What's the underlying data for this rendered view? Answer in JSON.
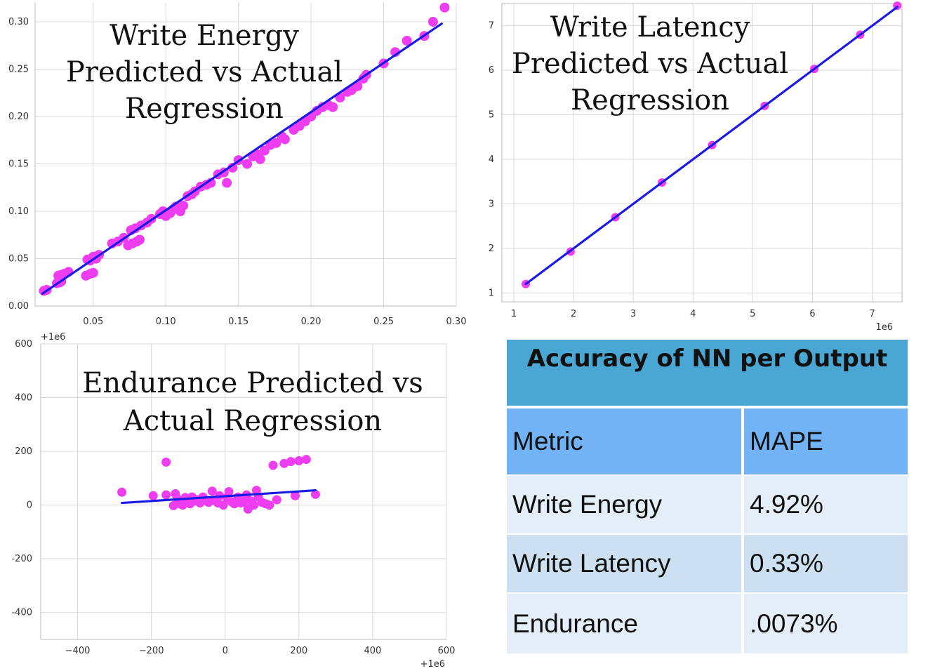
{
  "chart_data": [
    {
      "type": "scatter",
      "title": "Write Energy Predicted vs Actual Regression",
      "title_lines": [
        "Write Energy",
        "Predicted vs Actual",
        "Regression"
      ],
      "xlim": [
        0.01,
        0.3
      ],
      "ylim": [
        0.0,
        0.32
      ],
      "x_ticks": [
        "0.05",
        "0.10",
        "0.15",
        "0.20",
        "0.25",
        "0.30"
      ],
      "y_ticks": [
        "0.00",
        "0.05",
        "0.10",
        "0.15",
        "0.20",
        "0.25",
        "0.30"
      ],
      "grid": true,
      "point_color": "#ee3cf0",
      "line_color": "#1a1ae6",
      "regression_line": [
        [
          0.015,
          0.013
        ],
        [
          0.29,
          0.298
        ]
      ],
      "series": [
        {
          "points": [
            [
              0.016,
              0.016
            ],
            [
              0.018,
              0.017
            ],
            [
              0.025,
              0.024
            ],
            [
              0.027,
              0.025
            ],
            [
              0.028,
              0.026
            ],
            [
              0.026,
              0.032
            ],
            [
              0.028,
              0.033
            ],
            [
              0.03,
              0.034
            ],
            [
              0.033,
              0.036
            ],
            [
              0.045,
              0.032
            ],
            [
              0.048,
              0.034
            ],
            [
              0.05,
              0.035
            ],
            [
              0.046,
              0.049
            ],
            [
              0.048,
              0.048
            ],
            [
              0.05,
              0.052
            ],
            [
              0.052,
              0.05
            ],
            [
              0.054,
              0.054
            ],
            [
              0.063,
              0.066
            ],
            [
              0.067,
              0.068
            ],
            [
              0.071,
              0.072
            ],
            [
              0.074,
              0.064
            ],
            [
              0.077,
              0.066
            ],
            [
              0.08,
              0.068
            ],
            [
              0.082,
              0.07
            ],
            [
              0.076,
              0.08
            ],
            [
              0.079,
              0.082
            ],
            [
              0.083,
              0.085
            ],
            [
              0.087,
              0.088
            ],
            [
              0.09,
              0.092
            ],
            [
              0.096,
              0.097
            ],
            [
              0.098,
              0.1
            ],
            [
              0.1,
              0.095
            ],
            [
              0.103,
              0.098
            ],
            [
              0.105,
              0.102
            ],
            [
              0.107,
              0.105
            ],
            [
              0.11,
              0.1
            ],
            [
              0.112,
              0.106
            ],
            [
              0.115,
              0.116
            ],
            [
              0.118,
              0.118
            ],
            [
              0.12,
              0.121
            ],
            [
              0.124,
              0.126
            ],
            [
              0.128,
              0.128
            ],
            [
              0.131,
              0.13
            ],
            [
              0.136,
              0.139
            ],
            [
              0.14,
              0.141
            ],
            [
              0.142,
              0.13
            ],
            [
              0.146,
              0.146
            ],
            [
              0.15,
              0.154
            ],
            [
              0.156,
              0.15
            ],
            [
              0.16,
              0.158
            ],
            [
              0.163,
              0.16
            ],
            [
              0.165,
              0.155
            ],
            [
              0.168,
              0.164
            ],
            [
              0.172,
              0.17
            ],
            [
              0.176,
              0.172
            ],
            [
              0.18,
              0.179
            ],
            [
              0.182,
              0.176
            ],
            [
              0.188,
              0.186
            ],
            [
              0.192,
              0.19
            ],
            [
              0.196,
              0.195
            ],
            [
              0.2,
              0.2
            ],
            [
              0.204,
              0.206
            ],
            [
              0.208,
              0.21
            ],
            [
              0.212,
              0.212
            ],
            [
              0.215,
              0.21
            ],
            [
              0.22,
              0.22
            ],
            [
              0.225,
              0.226
            ],
            [
              0.228,
              0.228
            ],
            [
              0.232,
              0.232
            ],
            [
              0.236,
              0.24
            ],
            [
              0.238,
              0.244
            ],
            [
              0.25,
              0.256
            ],
            [
              0.258,
              0.268
            ],
            [
              0.266,
              0.28
            ],
            [
              0.278,
              0.285
            ],
            [
              0.284,
              0.3
            ],
            [
              0.292,
              0.315
            ]
          ]
        }
      ]
    },
    {
      "type": "scatter",
      "title": "Write Latency Predicted vs Actual Regression",
      "title_lines": [
        "Write Latency",
        "Predicted vs Actual",
        "Regression"
      ],
      "xlim": [
        0.8,
        7.5
      ],
      "ylim": [
        0.8,
        7.5
      ],
      "x_ticks": [
        "1",
        "2",
        "3",
        "4",
        "5",
        "6",
        "7"
      ],
      "y_ticks": [
        "1",
        "2",
        "3",
        "4",
        "5",
        "6",
        "7"
      ],
      "x_offset_label": "1e6",
      "grid": true,
      "point_color": "#ee3cf0",
      "line_color": "#1a1ae6",
      "regression_line": [
        [
          1.2,
          1.2
        ],
        [
          7.42,
          7.42
        ]
      ],
      "series": [
        {
          "points": [
            [
              1.2,
              1.2
            ],
            [
              1.95,
              1.93
            ],
            [
              2.7,
              2.7
            ],
            [
              3.48,
              3.48
            ],
            [
              4.32,
              4.32
            ],
            [
              5.2,
              5.2
            ],
            [
              6.03,
              6.03
            ],
            [
              6.8,
              6.8
            ],
            [
              7.42,
              7.45
            ]
          ]
        }
      ]
    },
    {
      "type": "scatter",
      "title": "Endurance Predicted vs Actual Regression",
      "title_lines": [
        "Endurance Predicted vs",
        "Actual Regression"
      ],
      "xlim": [
        -500,
        600
      ],
      "ylim": [
        -500,
        600
      ],
      "x_ticks": [
        "−400",
        "−200",
        "0",
        "200",
        "400",
        "600"
      ],
      "y_ticks": [
        "-400",
        "-200",
        "0",
        "200",
        "400",
        "600"
      ],
      "x_offset_label": "+1e6",
      "y_offset_label": "+1e6",
      "grid": true,
      "point_color": "#ee3cf0",
      "line_color": "#1a1ae6",
      "regression_line": [
        [
          -280,
          8
        ],
        [
          245,
          55
        ]
      ],
      "series": [
        {
          "points": [
            [
              -280,
              48
            ],
            [
              -195,
              35
            ],
            [
              -160,
              160
            ],
            [
              -160,
              38
            ],
            [
              -140,
              -2
            ],
            [
              -135,
              42
            ],
            [
              -128,
              22
            ],
            [
              -122,
              5
            ],
            [
              -115,
              0
            ],
            [
              -108,
              28
            ],
            [
              -100,
              12
            ],
            [
              -95,
              5
            ],
            [
              -90,
              30
            ],
            [
              -82,
              15
            ],
            [
              -75,
              20
            ],
            [
              -68,
              8
            ],
            [
              -60,
              30
            ],
            [
              -55,
              18
            ],
            [
              -45,
              10
            ],
            [
              -35,
              52
            ],
            [
              -30,
              18
            ],
            [
              -20,
              8
            ],
            [
              -15,
              35
            ],
            [
              -5,
              0
            ],
            [
              5,
              28
            ],
            [
              10,
              50
            ],
            [
              18,
              12
            ],
            [
              25,
              5
            ],
            [
              35,
              30
            ],
            [
              42,
              8
            ],
            [
              50,
              10
            ],
            [
              58,
              38
            ],
            [
              62,
              -15
            ],
            [
              70,
              15
            ],
            [
              78,
              0
            ],
            [
              85,
              55
            ],
            [
              90,
              30
            ],
            [
              100,
              10
            ],
            [
              110,
              5
            ],
            [
              120,
              0
            ],
            [
              130,
              148
            ],
            [
              140,
              20
            ],
            [
              160,
              155
            ],
            [
              178,
              162
            ],
            [
              190,
              35
            ],
            [
              200,
              165
            ],
            [
              220,
              170
            ],
            [
              245,
              40
            ]
          ]
        }
      ]
    }
  ],
  "table": {
    "title": "Accuracy of NN per Output",
    "header_bg": "#4aa7d3",
    "columns": [
      "Metric",
      "MAPE"
    ],
    "columns_bg": "#72b3f5",
    "rows": [
      {
        "metric": "Write Energy",
        "mape": "4.92%"
      },
      {
        "metric": "Write Latency",
        "mape": "0.33%"
      },
      {
        "metric": "Endurance",
        "mape": ".0073%"
      }
    ],
    "row_bgs": [
      "#e4eef8",
      "#cce0f1",
      "#e4eef8"
    ]
  }
}
